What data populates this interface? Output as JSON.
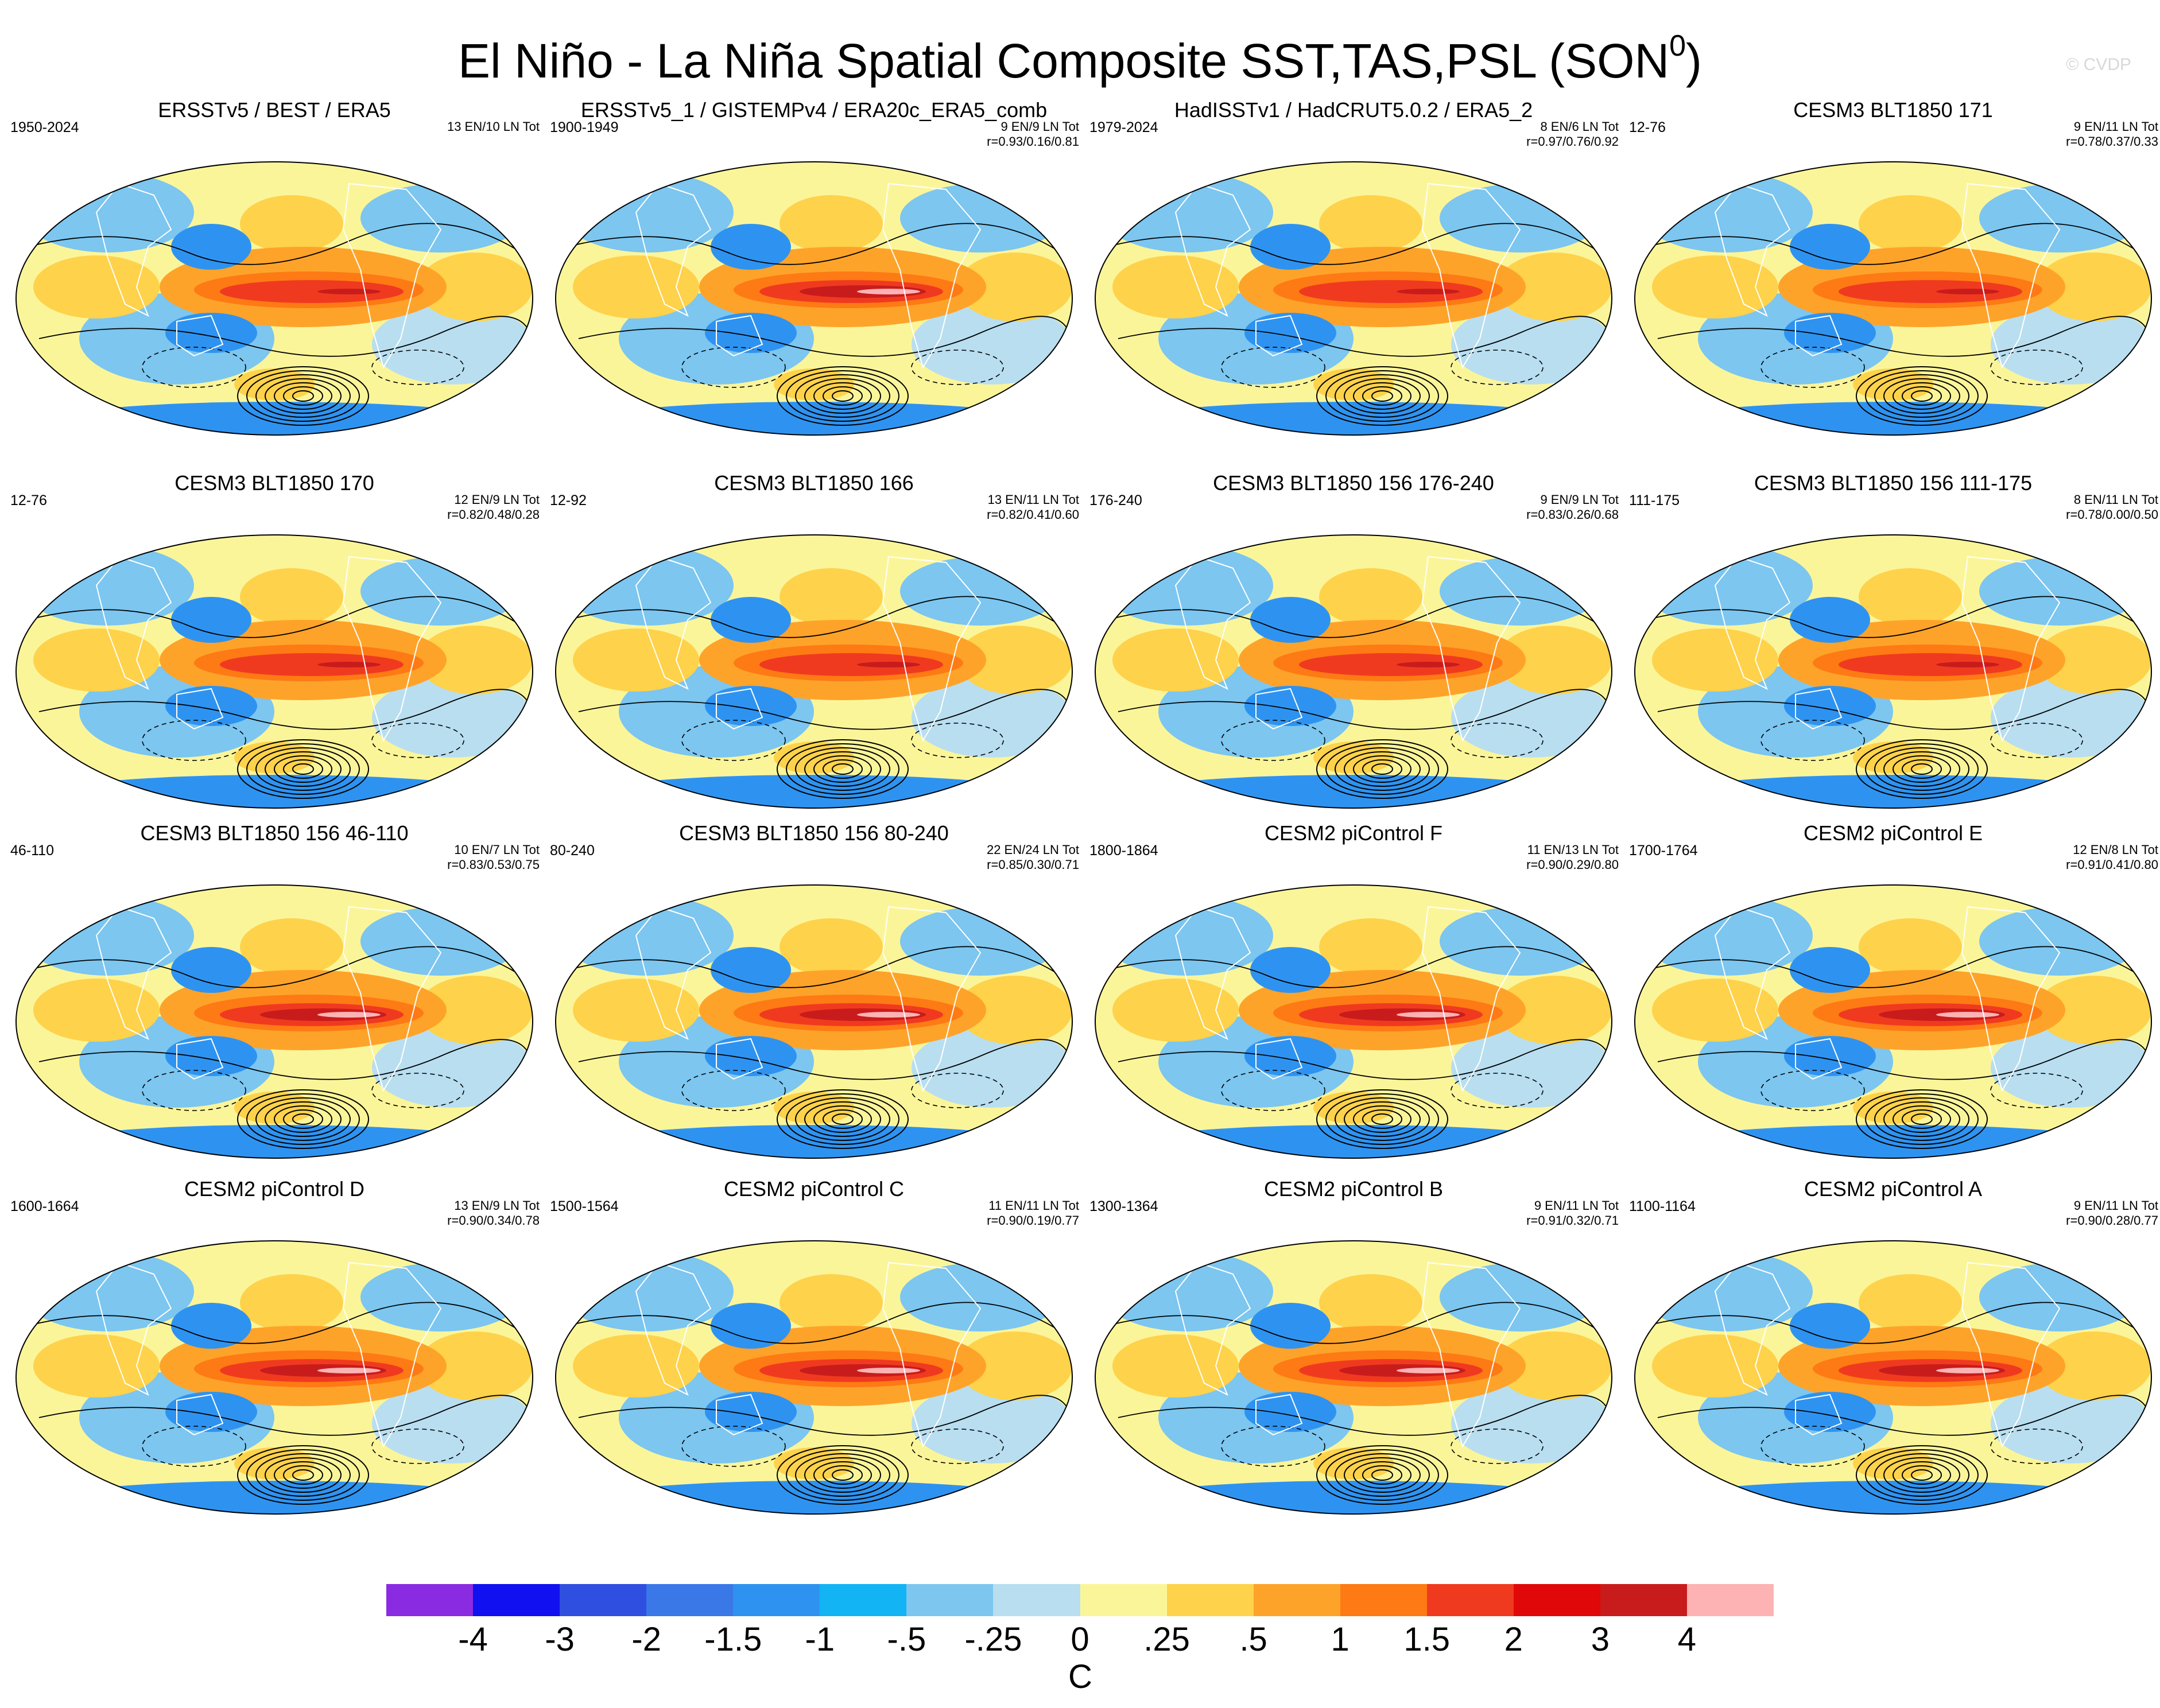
{
  "title": "El Niño - La Niña Spatial Composite SST,TAS,PSL (SON",
  "title_sup": "0",
  "title_close": ")",
  "watermark": "© CVDP",
  "panels": [
    {
      "title": "ERSSTv5 / BEST / ERA5",
      "years": "1950-2024",
      "counts": "13 EN/10 LN Tot",
      "corr": ""
    },
    {
      "title": "ERSSTv5_1 / GISTEMPv4 / ERA20c_ERA5_comb",
      "years": "1900-1949",
      "counts": "9 EN/9 LN Tot",
      "corr": "r=0.93/0.16/0.81"
    },
    {
      "title": "HadISSTv1 / HadCRUT5.0.2 / ERA5_2",
      "years": "1979-2024",
      "counts": "8 EN/6 LN Tot",
      "corr": "r=0.97/0.76/0.92"
    },
    {
      "title": "CESM3 BLT1850 171",
      "years": "12-76",
      "counts": "9 EN/11 LN Tot",
      "corr": "r=0.78/0.37/0.33"
    },
    {
      "title": "CESM3 BLT1850 170",
      "years": "12-76",
      "counts": "12 EN/9 LN Tot",
      "corr": "r=0.82/0.48/0.28"
    },
    {
      "title": "CESM3 BLT1850 166",
      "years": "12-92",
      "counts": "13 EN/11 LN Tot",
      "corr": "r=0.82/0.41/0.60"
    },
    {
      "title": "CESM3 BLT1850 156 176-240",
      "years": "176-240",
      "counts": "9 EN/9 LN Tot",
      "corr": "r=0.83/0.26/0.68"
    },
    {
      "title": "CESM3 BLT1850 156 111-175",
      "years": "111-175",
      "counts": "8 EN/11 LN Tot",
      "corr": "r=0.78/0.00/0.50"
    },
    {
      "title": "CESM3 BLT1850 156 46-110",
      "years": "46-110",
      "counts": "10 EN/7 LN Tot",
      "corr": "r=0.83/0.53/0.75"
    },
    {
      "title": "CESM3 BLT1850 156 80-240",
      "years": "80-240",
      "counts": "22 EN/24 LN Tot",
      "corr": "r=0.85/0.30/0.71"
    },
    {
      "title": "CESM2 piControl F",
      "years": "1800-1864",
      "counts": "11 EN/13 LN Tot",
      "corr": "r=0.90/0.29/0.80"
    },
    {
      "title": "CESM2 piControl E",
      "years": "1700-1764",
      "counts": "12 EN/8 LN Tot",
      "corr": "r=0.91/0.41/0.80"
    },
    {
      "title": "CESM2 piControl D",
      "years": "1600-1664",
      "counts": "13 EN/9 LN Tot",
      "corr": "r=0.90/0.34/0.78"
    },
    {
      "title": "CESM2 piControl C",
      "years": "1500-1564",
      "counts": "11 EN/11 LN Tot",
      "corr": "r=0.90/0.19/0.77"
    },
    {
      "title": "CESM2 piControl B",
      "years": "1300-1364",
      "counts": "9 EN/11 LN Tot",
      "corr": "r=0.91/0.32/0.71"
    },
    {
      "title": "CESM2 piControl A",
      "years": "1100-1164",
      "counts": "9 EN/11 LN Tot",
      "corr": "r=0.90/0.28/0.77"
    }
  ],
  "colorbar": {
    "colors": [
      "#8a2be2",
      "#1010f0",
      "#2f4fe0",
      "#3a78e8",
      "#2e93f0",
      "#12b4f4",
      "#7cc6f0",
      "#b8def0",
      "#fbf59a",
      "#fed24a",
      "#fea32a",
      "#fe7a14",
      "#f03a20",
      "#e00808",
      "#c81c1c",
      "#fdb3b3"
    ],
    "labels": [
      "-4",
      "-3",
      "-2",
      "-1.5",
      "-1",
      "-.5",
      "-.25",
      "0",
      ".25",
      ".5",
      "1",
      "1.5",
      "2",
      "3",
      "4"
    ],
    "unit": "C"
  }
}
